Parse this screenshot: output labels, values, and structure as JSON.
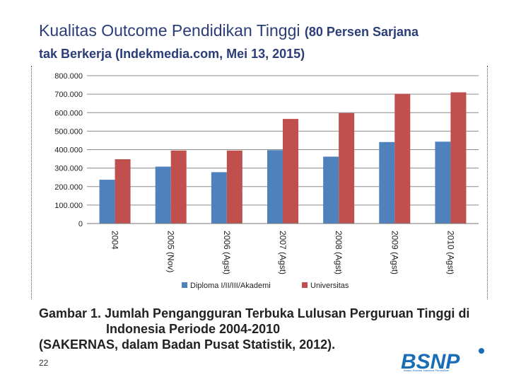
{
  "slide": {
    "title_main": "Kualitas Outcome Pendidikan Tinggi",
    "title_sub": "(80 Persen Sarjana",
    "title_line2": "tak Berkerja (Indekmedia.com, Mei 13, 2015)",
    "caption_line1": "Gambar 1.  Jumlah  Pengangguran  Terbuka  Lulusan  Perguruan  Tinggi  di",
    "caption_line2": "Indonesia Periode 2004-2010",
    "caption_line3": "(SAKERNAS, dalam Badan Pusat Statistik, 2012).",
    "page_number": "22",
    "logo_text": "BSNP",
    "logo_tagline": "Badan Standar Nasional Pendidikan"
  },
  "colors": {
    "title": "#2a3d78",
    "diploma": "#4f81bd",
    "universitas": "#c0504d",
    "logo": "#1a6db5"
  },
  "chart_data": {
    "type": "bar",
    "title": "",
    "xlabel": "",
    "ylabel": "",
    "categories": [
      "2004",
      "2005 (Nov)",
      "2006 (Agst)",
      "2007 (Agst)",
      "2008 (Agst)",
      "2009 (Agst)",
      "2010 (Agst)"
    ],
    "series": [
      {
        "name": "Diploma I/II/III/Akademi",
        "values": [
          237000,
          308000,
          278000,
          397000,
          362000,
          441000,
          443000
        ]
      },
      {
        "name": "Universitas",
        "values": [
          348000,
          395000,
          395000,
          566000,
          598000,
          702000,
          710000
        ]
      }
    ],
    "ylim": [
      0,
      800000
    ],
    "yticks": [
      "0",
      "100.000",
      "200.000",
      "300.000",
      "400.000",
      "500.000",
      "600.000",
      "700.000",
      "800.000"
    ],
    "grid": true,
    "legend": "bottom"
  }
}
